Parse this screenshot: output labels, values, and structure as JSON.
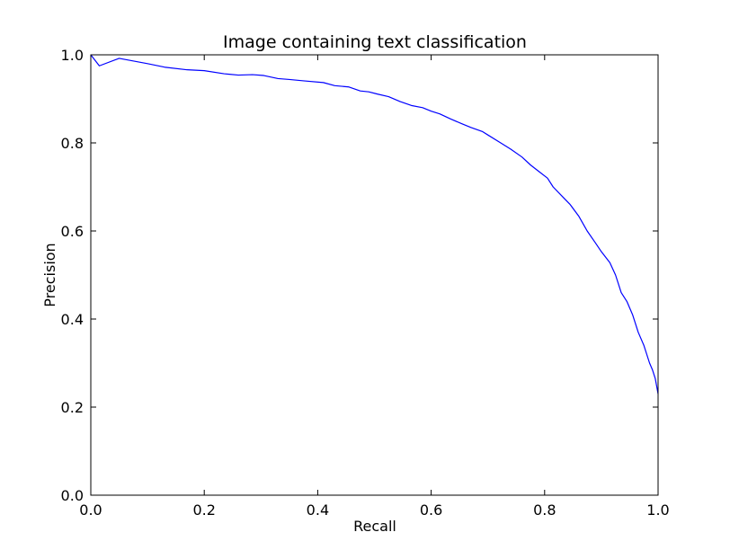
{
  "chart_data": {
    "type": "line",
    "title": "Image containing text classification",
    "xlabel": "Recall",
    "ylabel": "Precision",
    "xlim": [
      0.0,
      1.0
    ],
    "ylim": [
      0.0,
      1.0
    ],
    "xticks": [
      "0.0",
      "0.2",
      "0.4",
      "0.6",
      "0.8",
      "1.0"
    ],
    "yticks": [
      "0.0",
      "0.2",
      "0.4",
      "0.6",
      "0.8",
      "1.0"
    ],
    "grid": false,
    "series": [
      {
        "color": "#0000ff",
        "x": [
          0.0,
          0.015,
          0.05,
          0.1,
          0.13,
          0.17,
          0.2,
          0.235,
          0.26,
          0.285,
          0.305,
          0.33,
          0.35,
          0.375,
          0.41,
          0.43,
          0.455,
          0.475,
          0.49,
          0.505,
          0.525,
          0.545,
          0.565,
          0.585,
          0.6,
          0.615,
          0.635,
          0.655,
          0.67,
          0.69,
          0.7,
          0.72,
          0.74,
          0.76,
          0.775,
          0.79,
          0.805,
          0.815,
          0.83,
          0.845,
          0.86,
          0.875,
          0.89,
          0.9,
          0.915,
          0.925,
          0.935,
          0.945,
          0.955,
          0.965,
          0.975,
          0.985,
          0.99,
          0.995,
          1.0
        ],
        "y": [
          1.0,
          0.975,
          0.992,
          0.98,
          0.972,
          0.966,
          0.964,
          0.957,
          0.954,
          0.955,
          0.953,
          0.946,
          0.944,
          0.941,
          0.937,
          0.93,
          0.927,
          0.918,
          0.916,
          0.911,
          0.905,
          0.894,
          0.885,
          0.88,
          0.872,
          0.866,
          0.854,
          0.843,
          0.835,
          0.826,
          0.818,
          0.802,
          0.786,
          0.768,
          0.75,
          0.735,
          0.72,
          0.7,
          0.68,
          0.66,
          0.634,
          0.6,
          0.572,
          0.553,
          0.528,
          0.5,
          0.46,
          0.44,
          0.41,
          0.37,
          0.34,
          0.3,
          0.285,
          0.265,
          0.23
        ]
      }
    ]
  }
}
